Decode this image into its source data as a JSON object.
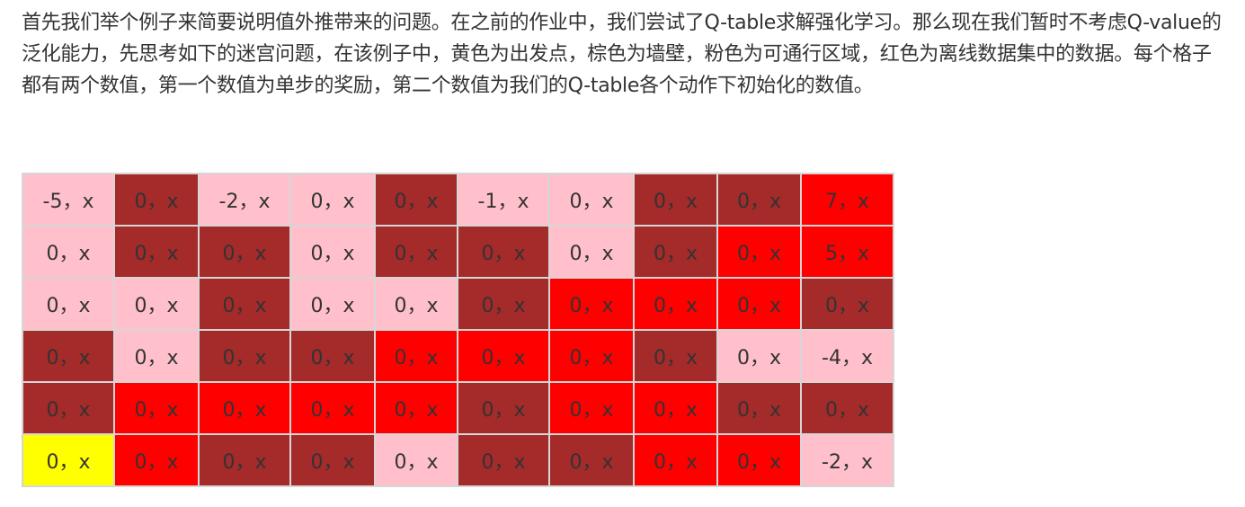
{
  "intro_text": "首先我们举个例子来简要说明值外推带来的问题。在之前的作业中，我们尝试了Q-table求解强化学习。那么现在我们暂时不考虑Q-value的泛化能力，先思考如下的迷宫问题，在该例子中，黄色为出发点，棕色为墙壁，粉色为可通行区域，红色为离线数据集中的数据。每个格子都有两个数值，第一个数值为单步的奖励，第二个数值为我们的Q-table各个动作下初始化的数值。",
  "colors": {
    "start": "#ffff00",
    "wall": "#a52a2a",
    "free": "#ffc0cb",
    "data": "#ff0000"
  },
  "grid": [
    [
      {
        "text": "-5，x",
        "type": "free"
      },
      {
        "text": "0，x",
        "type": "wall"
      },
      {
        "text": "-2，x",
        "type": "free"
      },
      {
        "text": "0，x",
        "type": "free"
      },
      {
        "text": "0，x",
        "type": "wall"
      },
      {
        "text": "-1，x",
        "type": "free"
      },
      {
        "text": "0，x",
        "type": "free"
      },
      {
        "text": "0，x",
        "type": "wall"
      },
      {
        "text": "0，x",
        "type": "wall"
      },
      {
        "text": "7，x",
        "type": "data"
      }
    ],
    [
      {
        "text": "0，x",
        "type": "free"
      },
      {
        "text": "0，x",
        "type": "wall"
      },
      {
        "text": "0，x",
        "type": "wall"
      },
      {
        "text": "0，x",
        "type": "free"
      },
      {
        "text": "0，x",
        "type": "wall"
      },
      {
        "text": "0，x",
        "type": "wall"
      },
      {
        "text": "0，x",
        "type": "free"
      },
      {
        "text": "0，x",
        "type": "wall"
      },
      {
        "text": "0，x",
        "type": "data"
      },
      {
        "text": "5，x",
        "type": "data"
      }
    ],
    [
      {
        "text": "0，x",
        "type": "free"
      },
      {
        "text": "0，x",
        "type": "free"
      },
      {
        "text": "0，x",
        "type": "wall"
      },
      {
        "text": "0，x",
        "type": "free"
      },
      {
        "text": "0，x",
        "type": "free"
      },
      {
        "text": "0，x",
        "type": "wall"
      },
      {
        "text": "0，x",
        "type": "data"
      },
      {
        "text": "0，x",
        "type": "data"
      },
      {
        "text": "0，x",
        "type": "data"
      },
      {
        "text": "0，x",
        "type": "wall"
      }
    ],
    [
      {
        "text": "0，x",
        "type": "wall"
      },
      {
        "text": "0，x",
        "type": "free"
      },
      {
        "text": "0，x",
        "type": "wall"
      },
      {
        "text": "0，x",
        "type": "wall"
      },
      {
        "text": "0，x",
        "type": "data"
      },
      {
        "text": "0，x",
        "type": "data"
      },
      {
        "text": "0，x",
        "type": "data"
      },
      {
        "text": "0，x",
        "type": "wall"
      },
      {
        "text": "0，x",
        "type": "free"
      },
      {
        "text": "-4，x",
        "type": "free"
      }
    ],
    [
      {
        "text": "0，x",
        "type": "wall"
      },
      {
        "text": "0，x",
        "type": "data"
      },
      {
        "text": "0，x",
        "type": "data"
      },
      {
        "text": "0，x",
        "type": "data"
      },
      {
        "text": "0，x",
        "type": "data"
      },
      {
        "text": "0，x",
        "type": "wall"
      },
      {
        "text": "0，x",
        "type": "data"
      },
      {
        "text": "0，x",
        "type": "data"
      },
      {
        "text": "0，x",
        "type": "wall"
      },
      {
        "text": "0，x",
        "type": "wall"
      }
    ],
    [
      {
        "text": "0，x",
        "type": "start"
      },
      {
        "text": "0，x",
        "type": "data"
      },
      {
        "text": "0，x",
        "type": "wall"
      },
      {
        "text": "0，x",
        "type": "wall"
      },
      {
        "text": "0，x",
        "type": "free"
      },
      {
        "text": "0，x",
        "type": "wall"
      },
      {
        "text": "0，x",
        "type": "wall"
      },
      {
        "text": "0，x",
        "type": "data"
      },
      {
        "text": "0，x",
        "type": "data"
      },
      {
        "text": "-2，x",
        "type": "free"
      }
    ]
  ]
}
